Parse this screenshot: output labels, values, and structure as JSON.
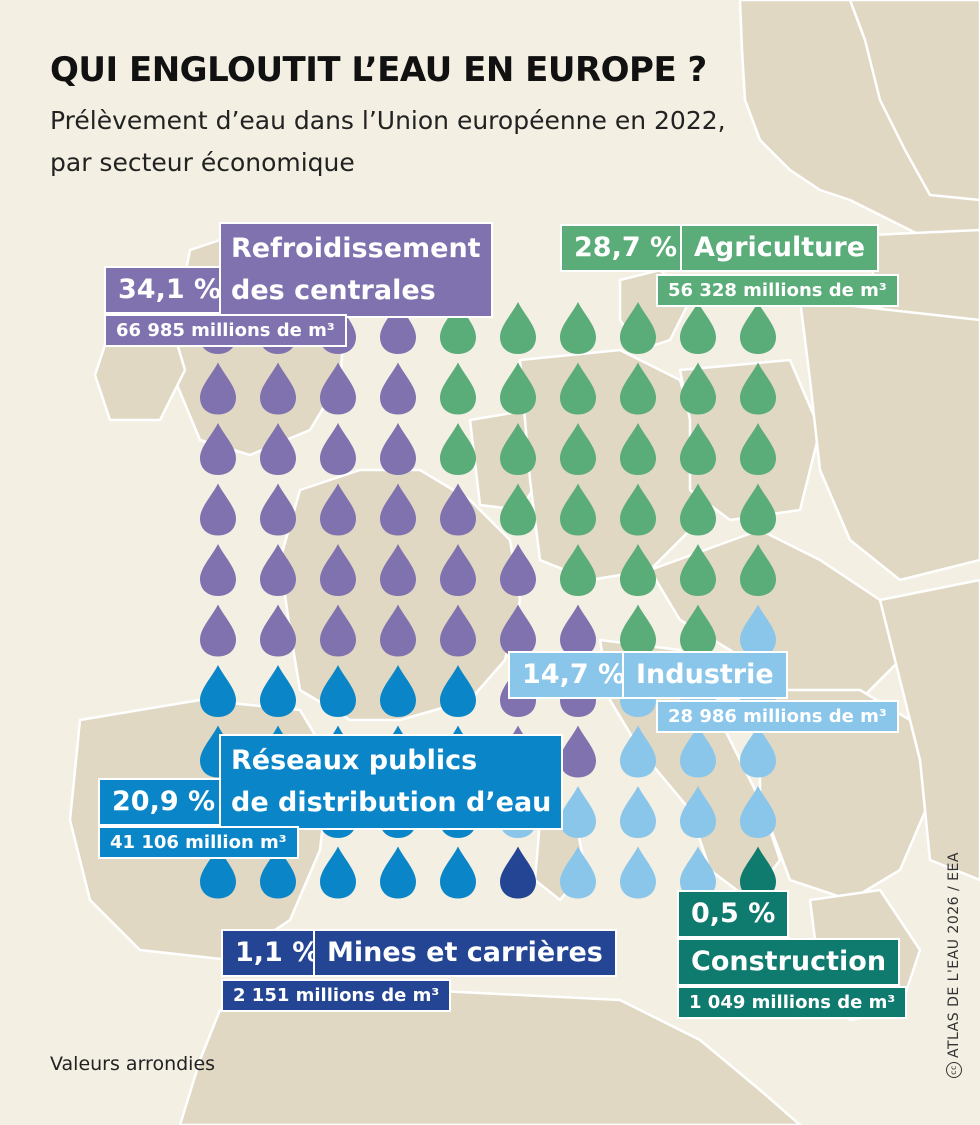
{
  "title": "QUI ENGLOUTIT L’EAU EN EUROPE ?",
  "subtitle_line1": "Prélèvement d’eau dans l’Union européenne en 2022,",
  "subtitle_line2": "par secteur économique",
  "note": "Valeurs arrondies",
  "credit": "ATLAS DE L'EAU 2026 / EEA",
  "credit_symbol": "cc",
  "colors": {
    "background": "#f3efe3",
    "land": "#e1d8c3",
    "border": "#ffffff",
    "cooling": "#7f72ae",
    "agriculture": "#5aac79",
    "industry": "#8ac6ea",
    "public": "#0a86c8",
    "mining": "#244593",
    "construction": "#0f7a6e"
  },
  "chart_data": {
    "type": "waffle",
    "units": 100,
    "grid": {
      "columns": 10,
      "rows": 10
    },
    "categories": [
      {
        "key": "cooling",
        "pct_label": "34,1 %",
        "name_line1": "Refroidissement",
        "name_line2": "des centrales",
        "volume_label": "66 985 millions de m³",
        "value": 34.1,
        "volume": 66985,
        "drops": 34
      },
      {
        "key": "agriculture",
        "pct_label": "28,7 %",
        "name_line1": "Agriculture",
        "volume_label": "56 328 millions de m³",
        "value": 28.7,
        "volume": 56328,
        "drops": 29
      },
      {
        "key": "industry",
        "pct_label": "14,7 %",
        "name_line1": "Industrie",
        "volume_label": "28 986 millions de m³",
        "value": 14.7,
        "volume": 28986,
        "drops": 15
      },
      {
        "key": "public",
        "pct_label": "20,9 %",
        "name_line1": "Réseaux publics",
        "name_line2": "de distribution d’eau",
        "volume_label": "41 106 million m³",
        "value": 20.9,
        "volume": 41106,
        "drops": 21
      },
      {
        "key": "mining",
        "pct_label": "1,1 %",
        "name_line1": "Mines et carrières",
        "volume_label": "2 151 millions de m³",
        "value": 1.1,
        "volume": 2151,
        "drops": 1
      },
      {
        "key": "construction",
        "pct_label": "0,5 %",
        "name_line1": "Construction",
        "volume_label": "1 049 millions de m³",
        "value": 0.5,
        "volume": 1049,
        "drops": 1
      }
    ]
  }
}
